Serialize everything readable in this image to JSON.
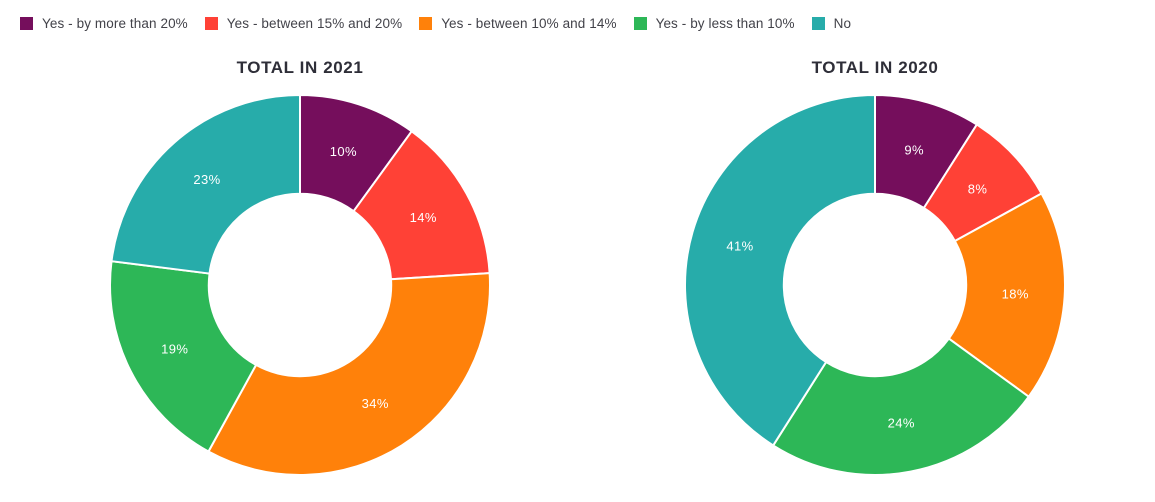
{
  "page": {
    "background": "#ffffff"
  },
  "legend": {
    "items": [
      {
        "label": "Yes - by more than 20%",
        "color": "#750E5C"
      },
      {
        "label": "Yes - between 15% and 20%",
        "color": "#FF4136"
      },
      {
        "label": "Yes - between 10% and 14%",
        "color": "#FF810A"
      },
      {
        "label": "Yes - by less than 10%",
        "color": "#2DB757"
      },
      {
        "label": "No",
        "color": "#27ACAA"
      }
    ]
  },
  "chart_data": [
    {
      "type": "pie",
      "subtype": "donut",
      "title": "TOTAL IN 2021",
      "unit": "percent",
      "start_angle_deg": 0,
      "direction": "clockwise",
      "inner_radius_ratio": 0.48,
      "categories": [
        "Yes - by more than 20%",
        "Yes - between 15% and 20%",
        "Yes - between 10% and 14%",
        "Yes - by less than 10%",
        "No"
      ],
      "values": [
        10,
        14,
        34,
        19,
        23
      ],
      "slices": [
        {
          "label": "Yes - by more than 20%",
          "value": 10,
          "data_label": "10%",
          "color": "#750E5C"
        },
        {
          "label": "Yes - between 15% and 20%",
          "value": 14,
          "data_label": "14%",
          "color": "#FF4136"
        },
        {
          "label": "Yes - between 10% and 14%",
          "value": 34,
          "data_label": "34%",
          "color": "#FF810A"
        },
        {
          "label": "Yes - by less than 10%",
          "value": 19,
          "data_label": "19%",
          "color": "#2DB757"
        },
        {
          "label": "No",
          "value": 23,
          "data_label": "23%",
          "color": "#27ACAA"
        }
      ]
    },
    {
      "type": "pie",
      "subtype": "donut",
      "title": "TOTAL IN 2020",
      "unit": "percent",
      "start_angle_deg": 0,
      "direction": "clockwise",
      "inner_radius_ratio": 0.48,
      "categories": [
        "Yes - by more than 20%",
        "Yes - between 15% and 20%",
        "Yes - between 10% and 14%",
        "Yes - by less than 10%",
        "No"
      ],
      "values": [
        9,
        8,
        18,
        24,
        41
      ],
      "slices": [
        {
          "label": "Yes - by more than 20%",
          "value": 9,
          "data_label": "9%",
          "color": "#750E5C"
        },
        {
          "label": "Yes - between 15% and 20%",
          "value": 8,
          "data_label": "8%",
          "color": "#FF4136"
        },
        {
          "label": "Yes - between 10% and 14%",
          "value": 18,
          "data_label": "18%",
          "color": "#FF810A"
        },
        {
          "label": "Yes - by less than 10%",
          "value": 24,
          "data_label": "24%",
          "color": "#2DB757"
        },
        {
          "label": "No",
          "value": 41,
          "data_label": "41%",
          "color": "#27ACAA"
        }
      ]
    }
  ]
}
